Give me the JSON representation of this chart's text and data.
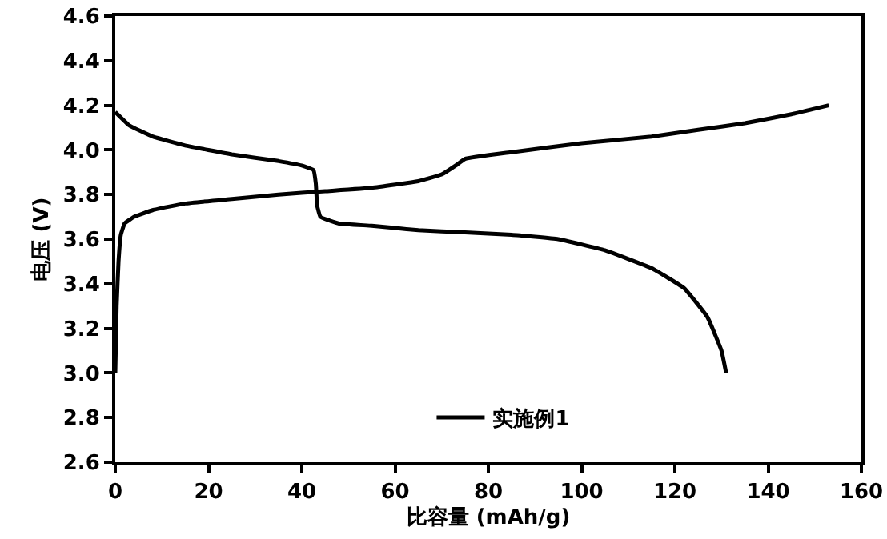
{
  "chart_data": {
    "type": "line",
    "xlabel": "比容量 (mAh/g)",
    "ylabel": "电压 (V)",
    "xlim": [
      0,
      160
    ],
    "xticks": [
      0,
      20,
      40,
      60,
      80,
      100,
      120,
      140,
      160
    ],
    "ylim": [
      2.6,
      4.6
    ],
    "yticks": [
      {
        "value": 2.6,
        "label": "2.6"
      },
      {
        "value": 2.8,
        "label": "2.8"
      },
      {
        "value": 3.0,
        "label": "3.0"
      },
      {
        "value": 3.2,
        "label": "3.2"
      },
      {
        "value": 3.4,
        "label": "3.4"
      },
      {
        "value": 3.6,
        "label": "3.6"
      },
      {
        "value": 3.8,
        "label": "3.8"
      },
      {
        "value": 4.0,
        "label": "4.0"
      },
      {
        "value": 4.2,
        "label": "4.2"
      },
      {
        "value": 4.4,
        "label": "4.4"
      },
      {
        "value": 4.6,
        "label": "4.6"
      }
    ],
    "grid": false,
    "legend": "bottom",
    "marker": "none",
    "line_style": "solid",
    "series": [
      {
        "name": "实施例1",
        "color": "#000000",
        "x": [
          0,
          0.3,
          0.7,
          1.2,
          2,
          4,
          8,
          15,
          25,
          35,
          45,
          55,
          65,
          70,
          73,
          75,
          85,
          100,
          115,
          125,
          135,
          145,
          153
        ],
        "values": [
          3.0,
          3.3,
          3.5,
          3.62,
          3.67,
          3.7,
          3.73,
          3.76,
          3.78,
          3.8,
          3.815,
          3.83,
          3.86,
          3.89,
          3.93,
          3.96,
          3.99,
          4.03,
          4.06,
          4.09,
          4.12,
          4.16,
          4.2
        ]
      },
      {
        "color": "#000000",
        "x": [
          0,
          3,
          8,
          15,
          25,
          35,
          40,
          42.5,
          43,
          43.3,
          44,
          48,
          55,
          65,
          75,
          85,
          95,
          105,
          115,
          122,
          127,
          130,
          131
        ],
        "values": [
          4.17,
          4.11,
          4.06,
          4.02,
          3.98,
          3.95,
          3.93,
          3.91,
          3.85,
          3.75,
          3.7,
          3.67,
          3.66,
          3.64,
          3.63,
          3.62,
          3.6,
          3.55,
          3.47,
          3.38,
          3.25,
          3.1,
          3.0
        ]
      }
    ]
  }
}
